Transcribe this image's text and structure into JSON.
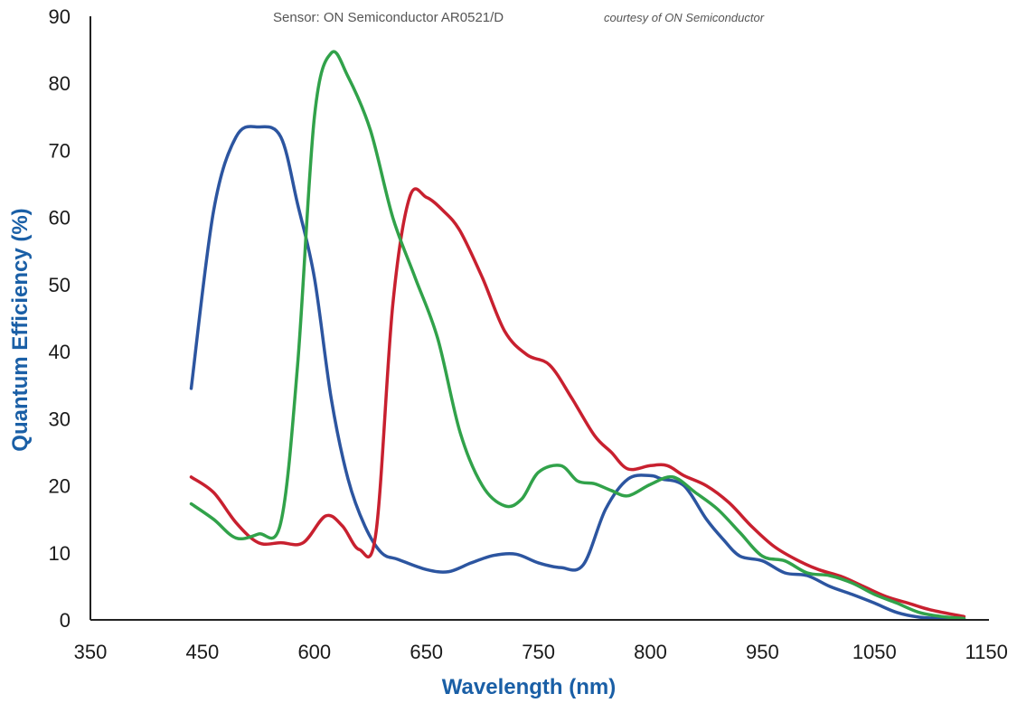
{
  "chart_data": {
    "type": "line",
    "title": "Sensor: ON Semiconductor AR0521/D",
    "subtitle": "courtesy of ON Semiconductor",
    "xlabel": "Wavelength (nm)",
    "ylabel": "Quantum Efficiency (%)",
    "x_ticks": [
      "350",
      "450",
      "600",
      "650",
      "750",
      "800",
      "950",
      "1050",
      "1150"
    ],
    "y_ticks": [
      "0",
      "10",
      "20",
      "30",
      "40",
      "50",
      "60",
      "70",
      "80",
      "90"
    ],
    "ylim": [
      0,
      90
    ],
    "grid": false,
    "axis_color": "#1a5fa6",
    "x_tick_note": "x tick labels are evenly spaced and printed non-uniformly; series x values are expressed in tick-index units (0 = first tick, 8 = last tick)",
    "series": [
      {
        "color": "#2c55a0",
        "x": [
          0.9,
          1.1,
          1.3,
          1.5,
          1.7,
          1.85,
          2.0,
          2.15,
          2.3,
          2.45,
          2.6,
          2.75,
          3.0,
          3.2,
          3.4,
          3.6,
          3.8,
          4.0,
          4.2,
          4.4,
          4.6,
          4.8,
          5.0,
          5.1,
          5.3,
          5.5,
          5.65,
          5.8,
          6.0,
          6.2,
          6.4,
          6.6,
          6.8,
          7.0,
          7.2,
          7.4,
          7.6,
          7.8
        ],
        "y": [
          34.5,
          61,
          72,
          73.5,
          72,
          62,
          51,
          33,
          21,
          14,
          10,
          9,
          7.5,
          7.2,
          8.5,
          9.6,
          9.8,
          8.5,
          7.8,
          8.2,
          16.5,
          21,
          21.5,
          21,
          20,
          15,
          12,
          9.5,
          8.8,
          7,
          6.6,
          5,
          3.8,
          2.5,
          1.1,
          0.4,
          0.2,
          0.2
        ]
      },
      {
        "color": "#31a24a",
        "x": [
          0.9,
          1.1,
          1.3,
          1.5,
          1.7,
          1.85,
          2.0,
          2.15,
          2.3,
          2.5,
          2.7,
          2.9,
          3.1,
          3.3,
          3.5,
          3.7,
          3.85,
          4.0,
          4.2,
          4.35,
          4.5,
          4.65,
          4.8,
          5.0,
          5.2,
          5.4,
          5.6,
          5.8,
          6.0,
          6.2,
          6.4,
          6.6,
          6.8,
          7.0,
          7.2,
          7.4,
          7.6,
          7.8
        ],
        "y": [
          17.3,
          15,
          12.2,
          12.8,
          14.5,
          38,
          75,
          84.5,
          81,
          73,
          60,
          51,
          42,
          28,
          20,
          17,
          18,
          22,
          23,
          20.7,
          20.3,
          19.3,
          18.5,
          20.2,
          21.3,
          19,
          16.5,
          13,
          9.5,
          8.8,
          7,
          6.6,
          5.5,
          3.8,
          2.5,
          1.1,
          0.5,
          0.2
        ]
      },
      {
        "color": "#c8202f",
        "x": [
          0.9,
          1.1,
          1.3,
          1.5,
          1.7,
          1.9,
          2.1,
          2.25,
          2.4,
          2.55,
          2.7,
          2.85,
          3.0,
          3.15,
          3.3,
          3.5,
          3.7,
          3.9,
          4.1,
          4.3,
          4.5,
          4.65,
          4.8,
          5.0,
          5.15,
          5.3,
          5.5,
          5.7,
          5.9,
          6.1,
          6.3,
          6.5,
          6.7,
          6.9,
          7.1,
          7.3,
          7.5,
          7.8
        ],
        "y": [
          21.3,
          19,
          14.5,
          11.5,
          11.5,
          11.5,
          15.5,
          14,
          10.5,
          13,
          47,
          63,
          63,
          61,
          58,
          51,
          43,
          39.5,
          38,
          33,
          27.5,
          25,
          22.5,
          23,
          23,
          21.5,
          20,
          17.5,
          14,
          11,
          9,
          7.5,
          6.5,
          5,
          3.5,
          2.5,
          1.5,
          0.5
        ]
      }
    ]
  }
}
